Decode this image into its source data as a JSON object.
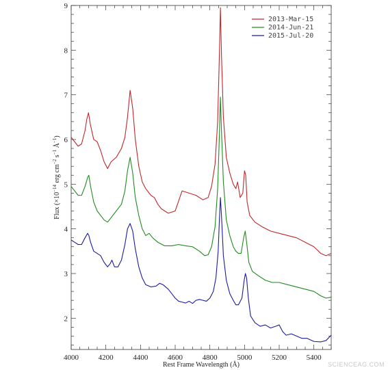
{
  "chart_data": {
    "type": "line",
    "xlabel": "Rest Frame Wavelength (Å)",
    "ylabel": "Flux (×10⁻¹⁴ erg cm⁻² s⁻¹ Å⁻¹)",
    "ylabel_parts": {
      "pre": "Flux (×10",
      "exp1": "−14",
      "mid1": " erg cm",
      "exp2": "−2",
      "mid2": " s",
      "exp3": "−1",
      "mid3": " Å",
      "exp4": "−1",
      "post": ")"
    },
    "xlim": [
      4000,
      5500
    ],
    "ylim": [
      1.3,
      9
    ],
    "xticks": [
      4000,
      4200,
      4400,
      4600,
      4800,
      5000,
      5200,
      5400
    ],
    "yticks": [
      2,
      3,
      4,
      5,
      6,
      7,
      8,
      9
    ],
    "legend_position": "top-right",
    "grid": false,
    "series": [
      {
        "name": "2013-Mar-15",
        "color": "#c0262a",
        "points": [
          [
            4000,
            6.05
          ],
          [
            4020,
            5.95
          ],
          [
            4040,
            5.85
          ],
          [
            4060,
            5.9
          ],
          [
            4080,
            6.2
          ],
          [
            4090,
            6.45
          ],
          [
            4100,
            6.6
          ],
          [
            4110,
            6.35
          ],
          [
            4130,
            6.0
          ],
          [
            4150,
            5.95
          ],
          [
            4170,
            5.75
          ],
          [
            4190,
            5.5
          ],
          [
            4210,
            5.35
          ],
          [
            4230,
            5.5
          ],
          [
            4260,
            5.6
          ],
          [
            4290,
            5.8
          ],
          [
            4310,
            6.05
          ],
          [
            4325,
            6.5
          ],
          [
            4340,
            7.1
          ],
          [
            4355,
            6.7
          ],
          [
            4370,
            6.0
          ],
          [
            4390,
            5.4
          ],
          [
            4410,
            5.05
          ],
          [
            4430,
            4.9
          ],
          [
            4460,
            4.75
          ],
          [
            4480,
            4.7
          ],
          [
            4500,
            4.55
          ],
          [
            4520,
            4.45
          ],
          [
            4560,
            4.35
          ],
          [
            4600,
            4.4
          ],
          [
            4640,
            4.85
          ],
          [
            4680,
            4.8
          ],
          [
            4720,
            4.75
          ],
          [
            4760,
            4.65
          ],
          [
            4790,
            4.7
          ],
          [
            4810,
            4.95
          ],
          [
            4830,
            5.45
          ],
          [
            4845,
            6.4
          ],
          [
            4855,
            7.9
          ],
          [
            4861,
            8.95
          ],
          [
            4867,
            7.9
          ],
          [
            4878,
            6.5
          ],
          [
            4895,
            5.6
          ],
          [
            4915,
            5.25
          ],
          [
            4935,
            5.0
          ],
          [
            4950,
            4.9
          ],
          [
            4960,
            5.05
          ],
          [
            4975,
            4.7
          ],
          [
            4990,
            4.8
          ],
          [
            5000,
            5.3
          ],
          [
            5007,
            5.2
          ],
          [
            5015,
            4.6
          ],
          [
            5030,
            4.3
          ],
          [
            5060,
            4.15
          ],
          [
            5100,
            4.05
          ],
          [
            5150,
            3.95
          ],
          [
            5200,
            3.9
          ],
          [
            5250,
            3.85
          ],
          [
            5300,
            3.8
          ],
          [
            5350,
            3.7
          ],
          [
            5400,
            3.6
          ],
          [
            5440,
            3.45
          ],
          [
            5470,
            3.4
          ],
          [
            5500,
            3.45
          ]
        ]
      },
      {
        "name": "2014-Jun-21",
        "color": "#1f8a1f",
        "points": [
          [
            4000,
            4.95
          ],
          [
            4020,
            4.85
          ],
          [
            4040,
            4.75
          ],
          [
            4060,
            4.75
          ],
          [
            4080,
            4.95
          ],
          [
            4095,
            5.15
          ],
          [
            4102,
            5.2
          ],
          [
            4112,
            4.95
          ],
          [
            4130,
            4.6
          ],
          [
            4150,
            4.4
          ],
          [
            4170,
            4.3
          ],
          [
            4190,
            4.2
          ],
          [
            4210,
            4.15
          ],
          [
            4230,
            4.25
          ],
          [
            4260,
            4.4
          ],
          [
            4290,
            4.55
          ],
          [
            4310,
            4.85
          ],
          [
            4325,
            5.3
          ],
          [
            4340,
            5.6
          ],
          [
            4355,
            5.25
          ],
          [
            4370,
            4.7
          ],
          [
            4390,
            4.3
          ],
          [
            4410,
            4.0
          ],
          [
            4430,
            3.85
          ],
          [
            4450,
            3.9
          ],
          [
            4470,
            3.8
          ],
          [
            4500,
            3.7
          ],
          [
            4540,
            3.62
          ],
          [
            4580,
            3.62
          ],
          [
            4620,
            3.65
          ],
          [
            4660,
            3.62
          ],
          [
            4700,
            3.6
          ],
          [
            4740,
            3.5
          ],
          [
            4770,
            3.4
          ],
          [
            4790,
            3.42
          ],
          [
            4810,
            3.6
          ],
          [
            4830,
            4.05
          ],
          [
            4845,
            4.9
          ],
          [
            4855,
            6.1
          ],
          [
            4861,
            6.95
          ],
          [
            4867,
            6.2
          ],
          [
            4878,
            5.05
          ],
          [
            4895,
            4.2
          ],
          [
            4915,
            3.85
          ],
          [
            4935,
            3.6
          ],
          [
            4950,
            3.5
          ],
          [
            4965,
            3.45
          ],
          [
            4980,
            3.45
          ],
          [
            4995,
            3.8
          ],
          [
            5004,
            3.95
          ],
          [
            5012,
            3.7
          ],
          [
            5025,
            3.25
          ],
          [
            5045,
            3.05
          ],
          [
            5080,
            2.95
          ],
          [
            5120,
            2.85
          ],
          [
            5160,
            2.8
          ],
          [
            5200,
            2.8
          ],
          [
            5250,
            2.75
          ],
          [
            5300,
            2.7
          ],
          [
            5350,
            2.65
          ],
          [
            5400,
            2.6
          ],
          [
            5440,
            2.5
          ],
          [
            5470,
            2.45
          ],
          [
            5500,
            2.47
          ]
        ]
      },
      {
        "name": "2015-Jul-20",
        "color": "#1a1aa0",
        "points": [
          [
            4000,
            3.75
          ],
          [
            4020,
            3.7
          ],
          [
            4040,
            3.65
          ],
          [
            4060,
            3.65
          ],
          [
            4080,
            3.8
          ],
          [
            4095,
            3.9
          ],
          [
            4102,
            3.85
          ],
          [
            4112,
            3.7
          ],
          [
            4130,
            3.5
          ],
          [
            4150,
            3.45
          ],
          [
            4170,
            3.4
          ],
          [
            4190,
            3.25
          ],
          [
            4210,
            3.15
          ],
          [
            4225,
            3.22
          ],
          [
            4235,
            3.3
          ],
          [
            4250,
            3.15
          ],
          [
            4270,
            3.15
          ],
          [
            4290,
            3.3
          ],
          [
            4310,
            3.65
          ],
          [
            4325,
            4.0
          ],
          [
            4340,
            4.12
          ],
          [
            4355,
            3.95
          ],
          [
            4370,
            3.55
          ],
          [
            4390,
            3.15
          ],
          [
            4410,
            2.9
          ],
          [
            4430,
            2.75
          ],
          [
            4460,
            2.7
          ],
          [
            4490,
            2.72
          ],
          [
            4510,
            2.78
          ],
          [
            4530,
            2.75
          ],
          [
            4560,
            2.65
          ],
          [
            4580,
            2.55
          ],
          [
            4600,
            2.45
          ],
          [
            4620,
            2.38
          ],
          [
            4640,
            2.36
          ],
          [
            4660,
            2.34
          ],
          [
            4680,
            2.38
          ],
          [
            4700,
            2.33
          ],
          [
            4720,
            2.4
          ],
          [
            4740,
            2.42
          ],
          [
            4760,
            2.4
          ],
          [
            4780,
            2.38
          ],
          [
            4800,
            2.45
          ],
          [
            4820,
            2.6
          ],
          [
            4835,
            2.9
          ],
          [
            4848,
            3.5
          ],
          [
            4855,
            4.2
          ],
          [
            4861,
            4.7
          ],
          [
            4867,
            4.3
          ],
          [
            4878,
            3.4
          ],
          [
            4895,
            2.85
          ],
          [
            4915,
            2.55
          ],
          [
            4935,
            2.4
          ],
          [
            4950,
            2.3
          ],
          [
            4965,
            2.3
          ],
          [
            4985,
            2.45
          ],
          [
            4998,
            2.85
          ],
          [
            5005,
            3.0
          ],
          [
            5012,
            2.9
          ],
          [
            5022,
            2.45
          ],
          [
            5035,
            2.05
          ],
          [
            5060,
            1.9
          ],
          [
            5090,
            1.82
          ],
          [
            5120,
            1.85
          ],
          [
            5150,
            1.78
          ],
          [
            5180,
            1.82
          ],
          [
            5200,
            1.85
          ],
          [
            5220,
            1.7
          ],
          [
            5240,
            1.62
          ],
          [
            5270,
            1.65
          ],
          [
            5300,
            1.6
          ],
          [
            5330,
            1.55
          ],
          [
            5360,
            1.55
          ],
          [
            5400,
            1.48
          ],
          [
            5440,
            1.47
          ],
          [
            5470,
            1.5
          ],
          [
            5500,
            1.62
          ]
        ]
      }
    ]
  },
  "watermark": "SCIENCEAG.COM"
}
